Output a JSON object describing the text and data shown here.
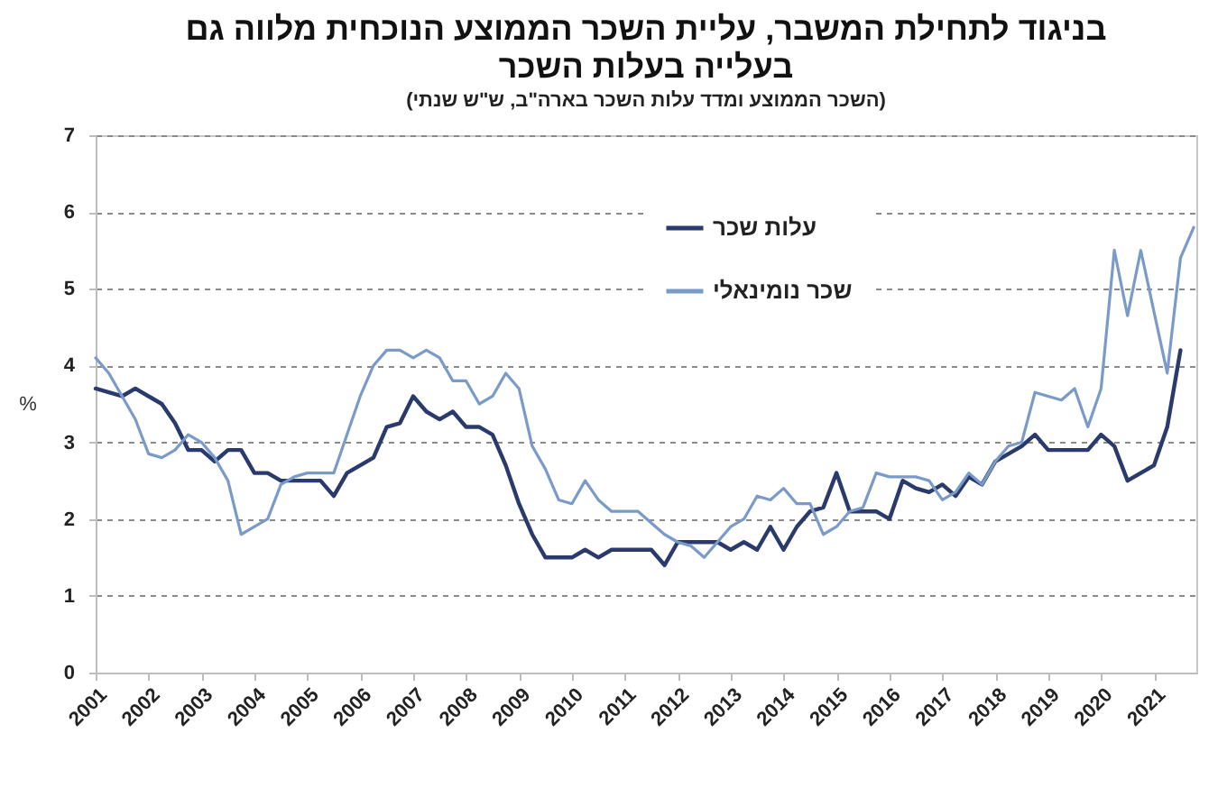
{
  "chart_data": {
    "type": "line",
    "title": "בניגוד לתחילת המשבר, עליית השכר הממוצע הנוכחית מלווה גם בעלייה בעלות השכר",
    "subtitle": "(השכר הממוצע ומדד עלות השכר בארה\"ב, ש\"ש שנתי)",
    "ylabel": "%",
    "x": [
      2001,
      2001.25,
      2001.5,
      2001.75,
      2002,
      2002.25,
      2002.5,
      2002.75,
      2003,
      2003.25,
      2003.5,
      2003.75,
      2004,
      2004.25,
      2004.5,
      2004.75,
      2005,
      2005.25,
      2005.5,
      2005.75,
      2006,
      2006.25,
      2006.5,
      2006.75,
      2007,
      2007.25,
      2007.5,
      2007.75,
      2008,
      2008.25,
      2008.5,
      2008.75,
      2009,
      2009.25,
      2009.5,
      2009.75,
      2010,
      2010.25,
      2010.5,
      2010.75,
      2011,
      2011.25,
      2011.5,
      2011.75,
      2012,
      2012.25,
      2012.5,
      2012.75,
      2013,
      2013.25,
      2013.5,
      2013.75,
      2014,
      2014.25,
      2014.5,
      2014.75,
      2015,
      2015.25,
      2015.5,
      2015.75,
      2016,
      2016.25,
      2016.5,
      2016.75,
      2017,
      2017.25,
      2017.5,
      2017.75,
      2018,
      2018.25,
      2018.5,
      2018.75,
      2019,
      2019.25,
      2019.5,
      2019.75,
      2020,
      2020.25,
      2020.5,
      2020.75,
      2021,
      2021.25,
      2021.5,
      2021.75
    ],
    "series": [
      {
        "name": "עלות שכר",
        "color": "#2a3a6c",
        "values": [
          3.7,
          3.65,
          3.6,
          3.7,
          3.6,
          3.5,
          3.25,
          2.9,
          2.9,
          2.75,
          2.9,
          2.9,
          2.6,
          2.6,
          2.5,
          2.5,
          2.5,
          2.5,
          2.3,
          2.6,
          2.7,
          2.8,
          3.2,
          3.25,
          3.6,
          3.4,
          3.3,
          3.4,
          3.2,
          3.2,
          3.1,
          2.7,
          2.2,
          1.8,
          1.5,
          1.5,
          1.5,
          1.6,
          1.5,
          1.6,
          1.6,
          1.6,
          1.6,
          1.4,
          1.7,
          1.7,
          1.7,
          1.7,
          1.6,
          1.7,
          1.6,
          1.9,
          1.6,
          1.9,
          2.1,
          2.15,
          2.6,
          2.1,
          2.1,
          2.1,
          2.0,
          2.5,
          2.4,
          2.35,
          2.45,
          2.3,
          2.55,
          2.45,
          2.75,
          2.85,
          2.95,
          3.1,
          2.9,
          2.9,
          2.9,
          2.9,
          3.1,
          2.95,
          2.5,
          2.6,
          2.7,
          3.2,
          4.2,
          null
        ]
      },
      {
        "name": "שכר נומינאלי",
        "color": "#7a9ac9",
        "values": [
          4.1,
          3.9,
          3.6,
          3.3,
          2.85,
          2.8,
          2.9,
          3.1,
          3.0,
          2.8,
          2.5,
          1.8,
          1.9,
          2.0,
          2.45,
          2.55,
          2.6,
          2.6,
          2.6,
          3.1,
          3.6,
          4.0,
          4.2,
          4.2,
          4.1,
          4.2,
          4.1,
          3.8,
          3.8,
          3.5,
          3.6,
          3.9,
          3.7,
          2.95,
          2.65,
          2.25,
          2.2,
          2.5,
          2.25,
          2.1,
          2.1,
          2.1,
          1.95,
          1.8,
          1.7,
          1.65,
          1.5,
          1.7,
          1.9,
          2.0,
          2.3,
          2.25,
          2.4,
          2.2,
          2.2,
          1.8,
          1.9,
          2.1,
          2.15,
          2.6,
          2.55,
          2.55,
          2.55,
          2.5,
          2.25,
          2.35,
          2.6,
          2.45,
          2.75,
          2.95,
          3.0,
          3.65,
          3.6,
          3.55,
          3.7,
          3.2,
          3.7,
          5.5,
          4.65,
          5.5,
          4.7,
          3.9,
          5.4,
          5.8
        ]
      }
    ],
    "xlim": [
      2001,
      2021.8
    ],
    "xticks": [
      2001,
      2002,
      2003,
      2004,
      2005,
      2006,
      2007,
      2008,
      2009,
      2010,
      2011,
      2012,
      2013,
      2014,
      2015,
      2016,
      2017,
      2018,
      2019,
      2020,
      2021
    ],
    "ylim": [
      0,
      7
    ],
    "yticks": [
      0,
      1,
      2,
      3,
      4,
      5,
      6,
      7
    ],
    "grid": "y",
    "legend": "top"
  }
}
